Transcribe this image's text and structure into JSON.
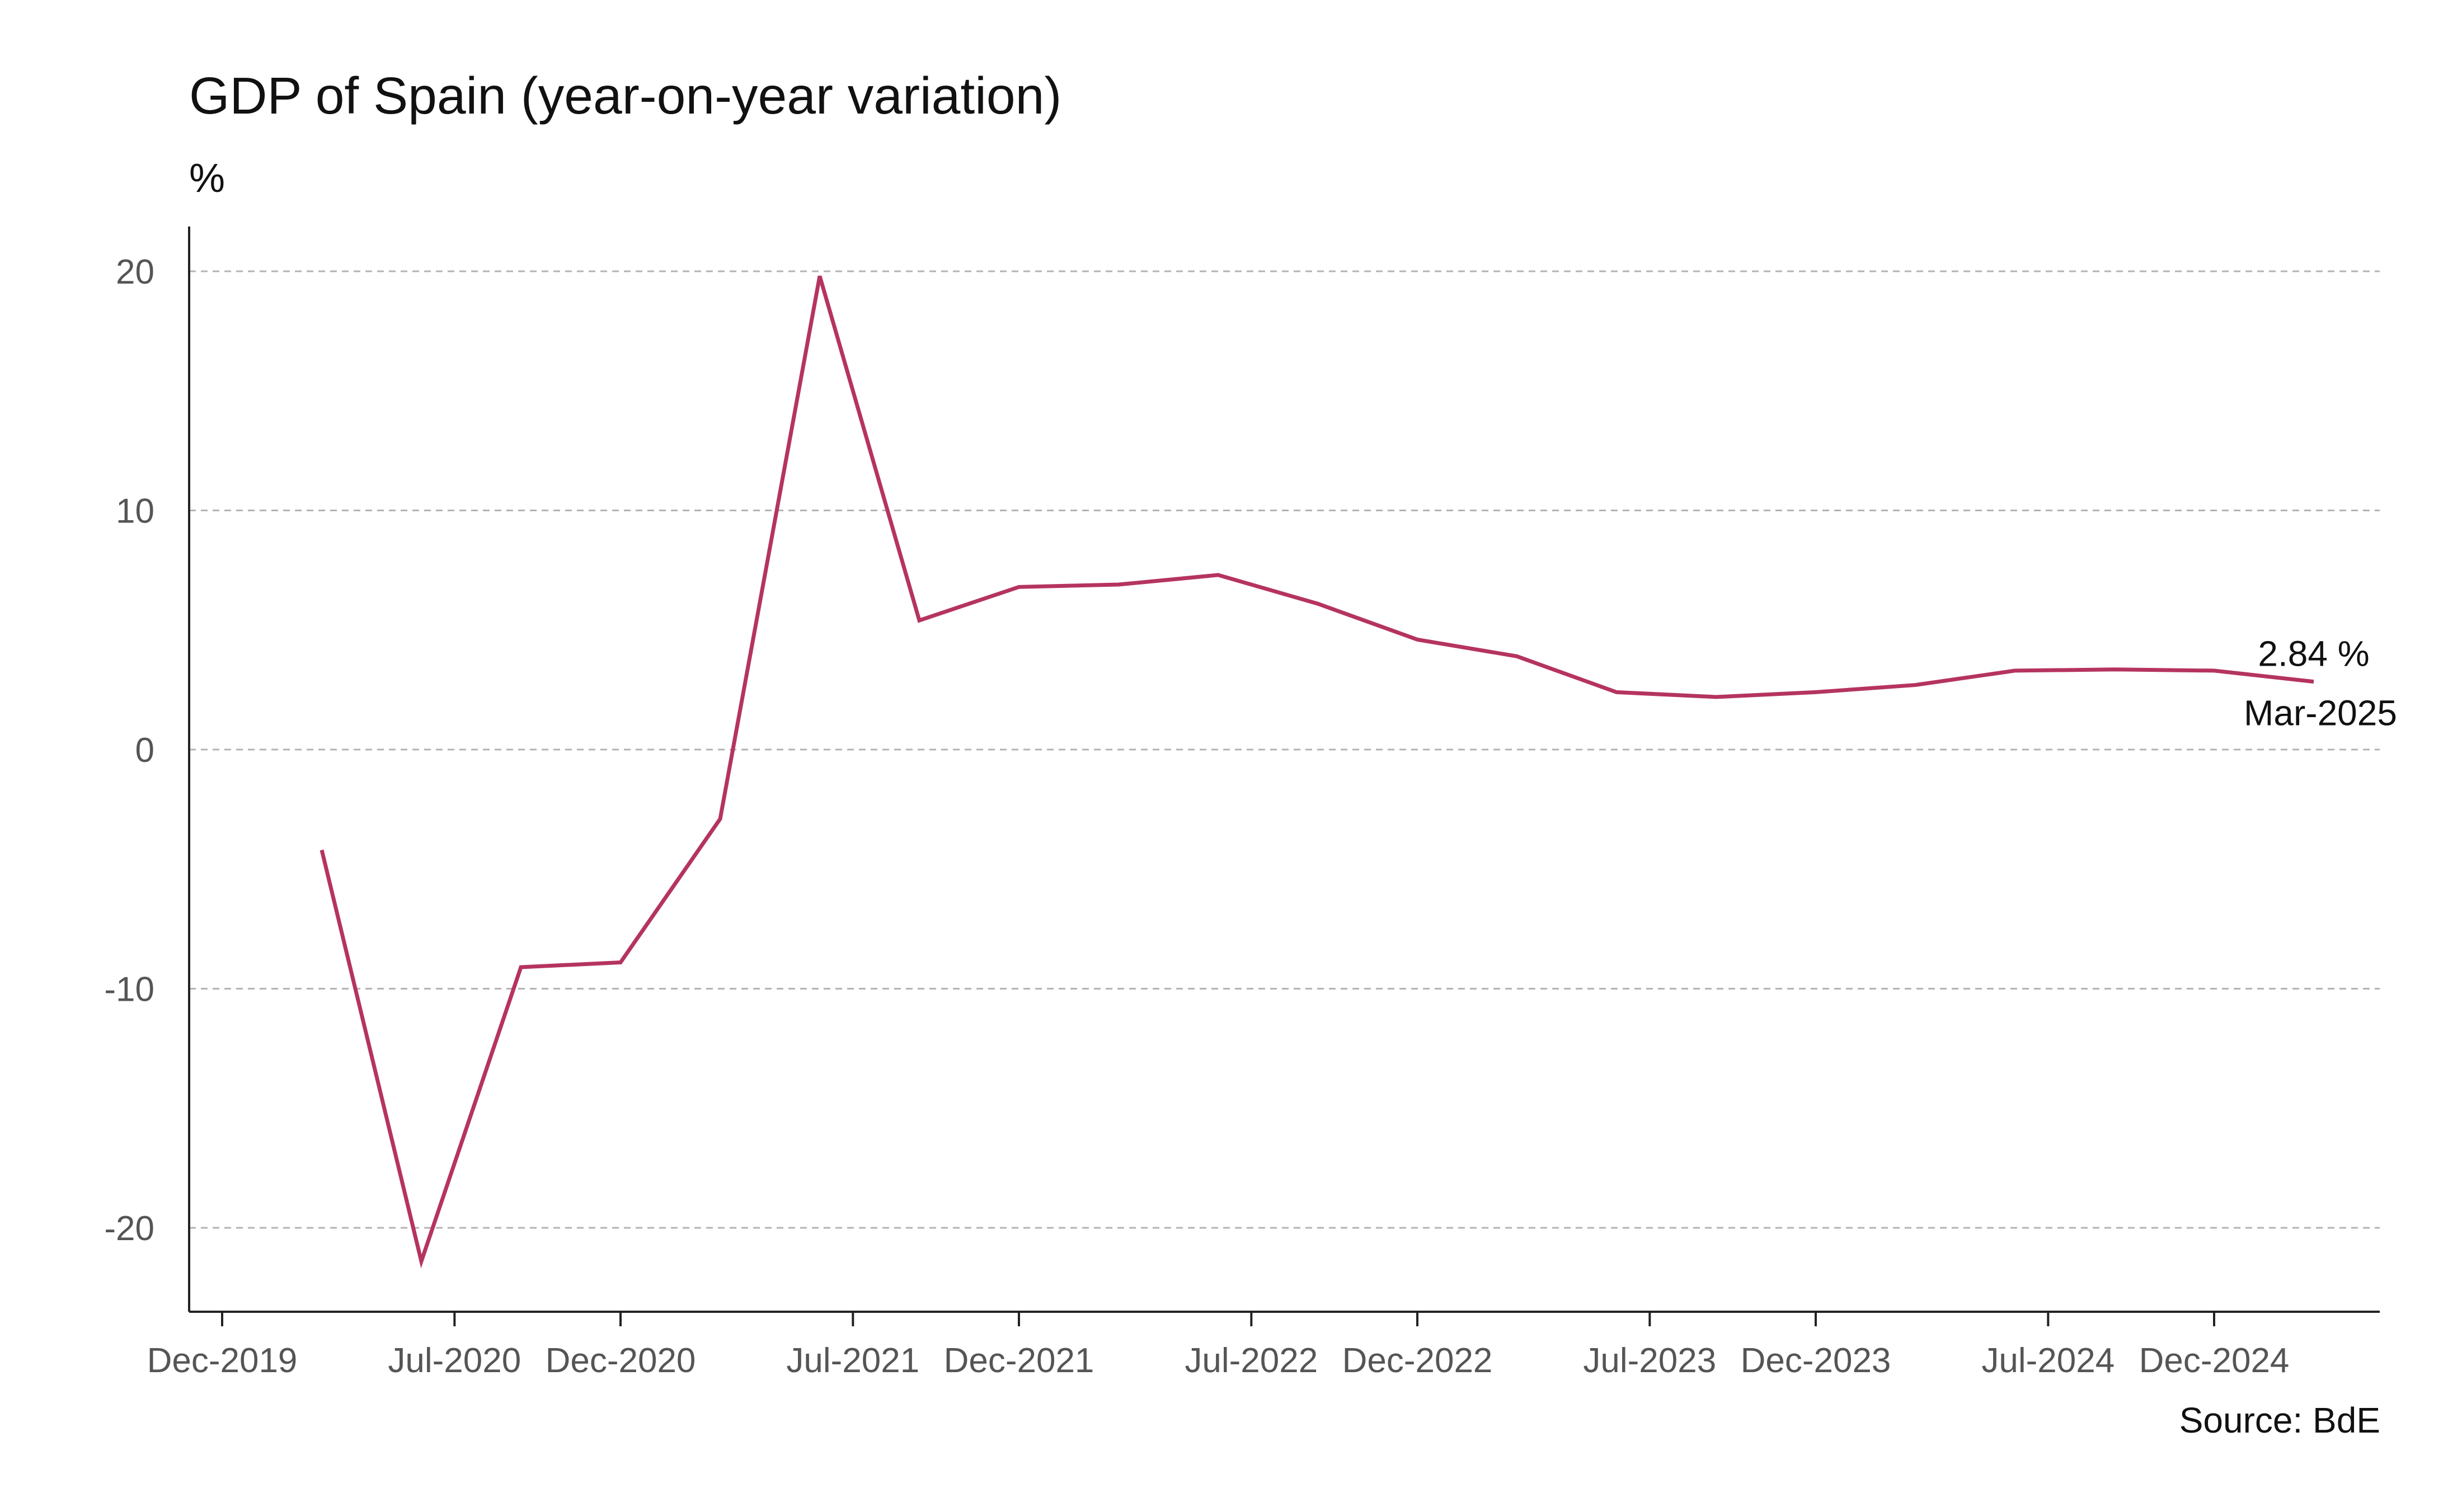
{
  "chart_data": {
    "type": "line",
    "title": "GDP of Spain (year-on-year variation)",
    "ylabel": "%",
    "xlabel": "",
    "source": "Source: BdE",
    "x_tick_labels": [
      "Dec-2019",
      "Jul-2020",
      "Dec-2020",
      "Jul-2021",
      "Dec-2021",
      "Jul-2022",
      "Dec-2022",
      "Jul-2023",
      "Dec-2023",
      "Jul-2024",
      "Dec-2024"
    ],
    "y_ticks": [
      20,
      10,
      0,
      -10,
      -20
    ],
    "y_tick_labels": [
      "20",
      "10",
      "0",
      "-10",
      "-20"
    ],
    "ylim": [
      -23.7,
      21.7
    ],
    "grid": "horizontal dashed",
    "series": [
      {
        "color": "#b5345e",
        "x": [
          "Mar-2020",
          "Jun-2020",
          "Sep-2020",
          "Dec-2020",
          "Mar-2021",
          "Jun-2021",
          "Sep-2021",
          "Dec-2021",
          "Mar-2022",
          "Jun-2022",
          "Sep-2022",
          "Dec-2022",
          "Mar-2023",
          "Jun-2023",
          "Sep-2023",
          "Dec-2023",
          "Mar-2024",
          "Jun-2024",
          "Sep-2024",
          "Dec-2024",
          "Mar-2025"
        ],
        "values": [
          -4.2,
          -21.4,
          -9.1,
          -8.9,
          -2.9,
          19.8,
          5.4,
          6.8,
          6.9,
          7.3,
          6.1,
          4.6,
          3.9,
          2.4,
          2.2,
          2.4,
          2.7,
          3.3,
          3.35,
          3.3,
          2.84
        ]
      }
    ],
    "annotation": {
      "value_label": "2.84 %",
      "date_label": "Mar-2025"
    }
  }
}
